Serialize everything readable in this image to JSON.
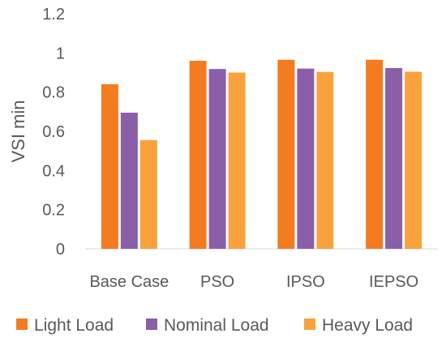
{
  "chart_data": {
    "type": "bar",
    "title": "",
    "xlabel": "",
    "ylabel": "VSI min",
    "ylim": [
      0,
      1.2
    ],
    "yticks": [
      "0",
      "0.2",
      "0.4",
      "0.6",
      "0.8",
      "1",
      "1.2"
    ],
    "grid": false,
    "legend_position": "bottom",
    "categories": [
      "Base Case",
      "PSO",
      "IPSO",
      "IEPSO"
    ],
    "series": [
      {
        "name": "Light Load",
        "color": "#F47B20",
        "values": [
          0.84,
          0.96,
          0.965,
          0.965
        ]
      },
      {
        "name": "Nominal Load",
        "color": "#8A5FA8",
        "values": [
          0.695,
          0.918,
          0.92,
          0.923
        ]
      },
      {
        "name": "Heavy Load",
        "color": "#F9A23C",
        "values": [
          0.555,
          0.9,
          0.903,
          0.904
        ]
      }
    ]
  }
}
